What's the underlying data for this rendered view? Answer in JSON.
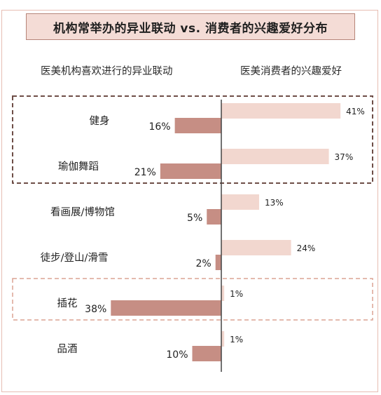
{
  "chart_data": {
    "type": "bar",
    "title": "机构常举办的异业联动 vs. 消费者的兴趣爱好分布",
    "left_header": "医美机构喜欢进行的异业联动",
    "right_header": "医美消费者的兴趣爱好",
    "categories": [
      "健身",
      "瑜伽舞蹈",
      "看画展/博物馆",
      "徒步/登山/滑雪",
      "插花",
      "品酒"
    ],
    "series": [
      {
        "name": "",
        "side": "left",
        "values": [
          16,
          21,
          5,
          2,
          38,
          10
        ],
        "labels": [
          "16%",
          "21%",
          "5%",
          "2%",
          "38%",
          "10%"
        ]
      },
      {
        "name": "",
        "side": "right",
        "values": [
          41,
          37,
          13,
          24,
          1,
          1
        ],
        "labels": [
          "41%",
          "37%",
          "13%",
          "24%",
          "1%",
          "1%"
        ]
      }
    ],
    "highlight_groups": [
      {
        "categories": [
          "健身",
          "瑜伽舞蹈"
        ],
        "style": "dashed"
      },
      {
        "categories": [
          "插花"
        ],
        "style": "dashed"
      }
    ],
    "colors": {
      "left": "#c68e84",
      "right": "#f2d7cf",
      "axis": "#444444",
      "dash_dark": "#6e4e47",
      "dash_light": "#dca494"
    }
  }
}
